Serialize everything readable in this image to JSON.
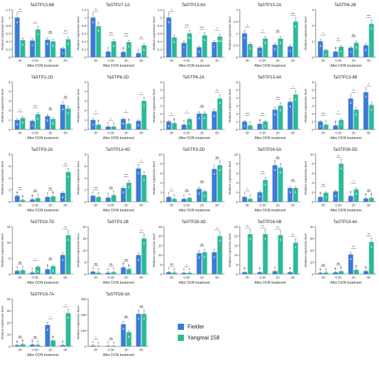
{
  "legend": {
    "items": [
      {
        "name": "Fielder",
        "color": "#3a7bd5"
      },
      {
        "name": "Yangmai 158",
        "color": "#2cb99a"
      }
    ]
  },
  "common": {
    "categories": [
      "0h",
      "0.5h",
      "2h",
      "6h"
    ],
    "xlabel": "After DON treatment",
    "ylabel": "Relative expression level",
    "colors": [
      "#3a7bd5",
      "#2cb99a"
    ]
  },
  "chart_data": [
    {
      "type": "bar",
      "title": "TaSTP13-6B",
      "ylim": [
        0,
        1.2
      ],
      "yticks": [
        0,
        0.2,
        0.4,
        0.6,
        0.8,
        1.0,
        1.2
      ],
      "series": [
        {
          "name": "Fielder",
          "values": [
            1.0,
            0.42,
            0.44,
            0.22
          ]
        },
        {
          "name": "Yangmai 158",
          "values": [
            0.43,
            0.7,
            0.4,
            0.45
          ]
        }
      ],
      "letters": [
        [
          "a",
          "c",
          "b",
          "c"
        ],
        [
          "b",
          "a",
          "b",
          "b"
        ]
      ],
      "sig": [
        "**",
        "*",
        "ns",
        "***"
      ]
    },
    {
      "type": "bar",
      "title": "TaSTP27-1A",
      "ylim": [
        0,
        1.2
      ],
      "yticks": [
        0,
        0.2,
        0.4,
        0.6,
        0.8,
        1.0,
        1.2
      ],
      "series": [
        {
          "name": "Fielder",
          "values": [
            1.0,
            0.14,
            0.13,
            0.1
          ]
        },
        {
          "name": "Yangmai 158",
          "values": [
            0.78,
            0.4,
            0.38,
            0.3
          ]
        }
      ],
      "letters": [
        [
          "a",
          "c",
          "b",
          "c"
        ],
        [
          "b",
          "a",
          "b",
          "b"
        ]
      ],
      "sig": [
        "**",
        "***",
        "***",
        "**"
      ]
    },
    {
      "type": "bar",
      "title": "TaSTP13-6A",
      "ylim": [
        0,
        1.2
      ],
      "yticks": [
        0,
        0.2,
        0.4,
        0.6,
        0.8,
        1.0,
        1.2
      ],
      "series": [
        {
          "name": "Fielder",
          "values": [
            1.0,
            0.36,
            0.25,
            0.38
          ]
        },
        {
          "name": "Yangmai 158",
          "values": [
            0.5,
            0.6,
            0.55,
            0.52
          ]
        }
      ],
      "letters": [
        [
          "a",
          "c",
          "b",
          "c"
        ],
        [
          "b",
          "bc",
          "b",
          "abc"
        ]
      ],
      "sig": [
        "*",
        "***",
        "***",
        "*"
      ]
    },
    {
      "type": "bar",
      "title": "TaSTP15-2A",
      "ylim": [
        0,
        2.0
      ],
      "yticks": [
        0,
        0.5,
        1.0,
        1.5,
        2.0
      ],
      "series": [
        {
          "name": "Fielder",
          "values": [
            1.0,
            0.4,
            0.52,
            0.45
          ]
        },
        {
          "name": "Yangmai 158",
          "values": [
            0.55,
            0.78,
            0.78,
            1.5
          ]
        }
      ],
      "letters": [
        [
          "a",
          "c",
          "b",
          "c"
        ],
        [
          "b",
          "b",
          "b",
          "a"
        ]
      ],
      "sig": [
        "*",
        "*",
        "ns",
        "***"
      ]
    },
    {
      "type": "bar",
      "title": "TaSTP6-2B",
      "ylim": [
        0,
        3
      ],
      "yticks": [
        0,
        1,
        2,
        3
      ],
      "series": [
        {
          "name": "Fielder",
          "values": [
            1.0,
            0.35,
            0.6,
            0.75
          ]
        },
        {
          "name": "Yangmai 158",
          "values": [
            0.45,
            0.65,
            0.9,
            2.1
          ]
        }
      ],
      "letters": [
        [
          "a",
          "d",
          "c",
          "b"
        ],
        [
          "c",
          "c",
          "b",
          "a"
        ]
      ],
      "sig": [
        "*",
        "**",
        "ns",
        "***"
      ]
    },
    {
      "type": "bar",
      "title": "TaSTP1-2D",
      "ylim": [
        0,
        5
      ],
      "yticks": [
        0,
        1,
        2,
        3,
        4,
        5
      ],
      "series": [
        {
          "name": "Fielder",
          "values": [
            1.0,
            0.9,
            1.4,
            2.6
          ]
        },
        {
          "name": "Yangmai 158",
          "values": [
            1.2,
            1.6,
            1.1,
            2.2
          ]
        }
      ],
      "letters": [
        [
          "b",
          "c",
          "b",
          "a"
        ],
        [
          "b",
          "b",
          "b",
          "a"
        ]
      ],
      "sig": [
        "*",
        "***",
        "ns",
        "ns"
      ]
    },
    {
      "type": "bar",
      "title": "TaSTP6-2D",
      "ylim": [
        0,
        5
      ],
      "yticks": [
        0,
        1,
        2,
        3,
        4,
        5
      ],
      "series": [
        {
          "name": "Fielder",
          "values": [
            1.0,
            0.3,
            1.1,
            0.9
          ]
        },
        {
          "name": "Yangmai 158",
          "values": [
            0.5,
            0.3,
            0.6,
            3.0
          ]
        }
      ],
      "letters": [
        [
          "a",
          "c",
          "b",
          "b"
        ],
        [
          "b",
          "c",
          "b",
          "a"
        ]
      ],
      "sig": [
        "*",
        "*",
        "*",
        "*"
      ]
    },
    {
      "type": "bar",
      "title": "TaSTP6-2A",
      "ylim": [
        0,
        6
      ],
      "yticks": [
        0,
        1,
        2,
        3,
        4,
        5,
        6
      ],
      "series": [
        {
          "name": "Fielder",
          "values": [
            1.0,
            0.6,
            2.0,
            2.3
          ]
        },
        {
          "name": "Yangmai 158",
          "values": [
            0.8,
            1.3,
            2.0,
            3.9
          ]
        }
      ],
      "letters": [
        [
          "b",
          "c",
          "a",
          "a"
        ],
        [
          "b",
          "b",
          "b",
          "a"
        ]
      ],
      "sig": [
        "*",
        "*",
        "ns",
        "**"
      ]
    },
    {
      "type": "bar",
      "title": "TaSTP13-4A",
      "ylim": [
        0,
        6
      ],
      "yticks": [
        0,
        1,
        2,
        3,
        4,
        5,
        6
      ],
      "series": [
        {
          "name": "Fielder",
          "values": [
            1.0,
            0.7,
            2.5,
            3.5
          ]
        },
        {
          "name": "Yangmai 158",
          "values": [
            0.5,
            1.0,
            3.0,
            4.4
          ]
        }
      ],
      "letters": [
        [
          "c",
          "d",
          "b",
          "a"
        ],
        [
          "c",
          "c",
          "b",
          "a"
        ]
      ],
      "sig": [
        "***",
        "**",
        "***",
        "*"
      ]
    },
    {
      "type": "bar",
      "title": "TaSTP13-4B",
      "ylim": [
        0,
        6
      ],
      "yticks": [
        0,
        1,
        2,
        3,
        4,
        5,
        6
      ],
      "series": [
        {
          "name": "Fielder",
          "values": [
            1.0,
            0.5,
            3.9,
            4.7
          ]
        },
        {
          "name": "Yangmai 158",
          "values": [
            0.6,
            1.2,
            2.5,
            3.1
          ]
        }
      ],
      "letters": [
        [
          "c",
          "d",
          "b",
          "a"
        ],
        [
          "c",
          "c",
          "b",
          "a"
        ]
      ],
      "sig": [
        "***",
        "*",
        "**",
        "*"
      ]
    },
    {
      "type": "bar",
      "title": "TaSTP3-2A",
      "ylim": [
        0,
        8
      ],
      "yticks": [
        0,
        2,
        4,
        6,
        8
      ],
      "series": [
        {
          "name": "Fielder",
          "values": [
            1.0,
            0.4,
            0.8,
            1.5
          ]
        },
        {
          "name": "Yangmai 158",
          "values": [
            0.3,
            0.6,
            0.9,
            5.0
          ]
        }
      ],
      "letters": [
        [
          "a",
          "b",
          "c",
          "d"
        ],
        [
          "b",
          "c",
          "b",
          "a"
        ]
      ],
      "sig": [
        "***",
        "ns",
        "ns",
        "**"
      ]
    },
    {
      "type": "bar",
      "title": "TaSTP13-4D",
      "ylim": [
        0,
        8
      ],
      "yticks": [
        0,
        2,
        4,
        6,
        8
      ],
      "series": [
        {
          "name": "Fielder",
          "values": [
            1.0,
            0.7,
            2.3,
            5.6
          ]
        },
        {
          "name": "Yangmai 158",
          "values": [
            0.8,
            1.1,
            3.2,
            4.5
          ]
        }
      ],
      "letters": [
        [
          "c",
          "c",
          "b",
          "a"
        ],
        [
          "c",
          "c",
          "b",
          "a"
        ]
      ],
      "sig": [
        "***",
        "ns",
        "***",
        "*"
      ]
    },
    {
      "type": "bar",
      "title": "TaSTP3-2D",
      "ylim": [
        0,
        10
      ],
      "yticks": [
        0,
        2,
        4,
        6,
        8,
        10
      ],
      "series": [
        {
          "name": "Fielder",
          "values": [
            1.0,
            0.6,
            2.7,
            6.9
          ]
        },
        {
          "name": "Yangmai 158",
          "values": [
            0.6,
            0.8,
            2.2,
            7.7
          ]
        }
      ],
      "letters": [
        [
          "c",
          "c",
          "b",
          "a"
        ],
        [
          "c",
          "c",
          "b",
          "a"
        ]
      ],
      "sig": [
        "*",
        "ns",
        "ns",
        "ns"
      ]
    },
    {
      "type": "bar",
      "title": "TaSTP26-5A",
      "ylim": [
        0,
        10
      ],
      "yticks": [
        0,
        2,
        4,
        6,
        8,
        10
      ],
      "series": [
        {
          "name": "Fielder",
          "values": [
            1.0,
            2.0,
            7.7,
            2.9
          ]
        },
        {
          "name": "Yangmai 158",
          "values": [
            0.6,
            4.6,
            7.2,
            2.9
          ]
        }
      ],
      "letters": [
        [
          "c",
          "b",
          "a",
          "b"
        ],
        [
          "c",
          "b",
          "a",
          "b"
        ]
      ],
      "sig": [
        "*",
        "***",
        "ns",
        "ns"
      ]
    },
    {
      "type": "bar",
      "title": "TaSTP26-5D",
      "ylim": [
        0,
        10
      ],
      "yticks": [
        0,
        2,
        4,
        6,
        8,
        10
      ],
      "series": [
        {
          "name": "Fielder",
          "values": [
            1.0,
            2.2,
            1.2,
            0.7
          ]
        },
        {
          "name": "Yangmai 158",
          "values": [
            1.9,
            8.0,
            2.6,
            0.8
          ]
        }
      ],
      "letters": [
        [
          "b",
          "a",
          "b",
          "b"
        ],
        [
          "c",
          "a",
          "b",
          "d"
        ]
      ],
      "sig": [
        "***",
        "**",
        "*",
        "ns"
      ]
    },
    {
      "type": "bar",
      "title": "TaSTP19-7D",
      "ylim": [
        0,
        15
      ],
      "yticks": [
        0,
        5,
        10,
        15
      ],
      "series": [
        {
          "name": "Fielder",
          "values": [
            1.0,
            0.5,
            1.5,
            6.0
          ]
        },
        {
          "name": "Yangmai 158",
          "values": [
            1.2,
            2.3,
            2.5,
            12.3
          ]
        }
      ],
      "letters": [
        [
          "c",
          "c",
          "b",
          "a"
        ],
        [
          "c",
          "b",
          "b",
          "a"
        ]
      ],
      "sig": [
        "ns",
        "*",
        "ns",
        "**"
      ]
    },
    {
      "type": "bar",
      "title": "TaSTP3-2B",
      "ylim": [
        0,
        20
      ],
      "yticks": [
        0,
        5,
        10,
        15,
        20
      ],
      "series": [
        {
          "name": "Fielder",
          "values": [
            1.0,
            0.6,
            2.8,
            8.0
          ]
        },
        {
          "name": "Yangmai 158",
          "values": [
            0.6,
            0.8,
            2.1,
            15.0
          ]
        }
      ],
      "letters": [
        [
          "c",
          "c",
          "b",
          "a"
        ],
        [
          "c",
          "c",
          "b",
          "a"
        ]
      ],
      "sig": [
        "ns",
        "ns",
        "ns",
        "**"
      ]
    },
    {
      "type": "bar",
      "title": "TaSTP28-3D",
      "ylim": [
        0,
        25
      ],
      "yticks": [
        0,
        5,
        10,
        15,
        20,
        25
      ],
      "series": [
        {
          "name": "Fielder",
          "values": [
            1.0,
            0.6,
            11.0,
            11.5
          ]
        },
        {
          "name": "Yangmai 158",
          "values": [
            0.8,
            0.7,
            11.5,
            20.0
          ]
        }
      ],
      "letters": [
        [
          "c",
          "c",
          "b",
          "a"
        ],
        [
          "c",
          "c",
          "b",
          "a"
        ]
      ],
      "sig": [
        "ns",
        "*",
        "ns",
        "*"
      ]
    },
    {
      "type": "bar",
      "title": "TaSTP26-5B",
      "ylim": [
        0,
        25
      ],
      "yticks": [
        0,
        5,
        10,
        15,
        20,
        25
      ],
      "series": [
        {
          "name": "Fielder",
          "values": [
            1.0,
            1.0,
            1.5,
            1.0
          ]
        },
        {
          "name": "Yangmai 158",
          "values": [
            21.0,
            21.0,
            20.5,
            16.5
          ]
        }
      ],
      "letters": [
        [
          "b",
          "b",
          "c",
          "b"
        ],
        [
          "a",
          "a",
          "a",
          "a"
        ]
      ],
      "sig": [
        "**",
        "**",
        "**",
        "**"
      ]
    },
    {
      "type": "bar",
      "title": "TaSTP19-4A",
      "ylim": [
        0,
        40
      ],
      "yticks": [
        0,
        10,
        20,
        30,
        40
      ],
      "series": [
        {
          "name": "Fielder",
          "values": [
            1.0,
            1.5,
            16.5,
            2.5
          ]
        },
        {
          "name": "Yangmai 158",
          "values": [
            1.3,
            2.3,
            3.5,
            27.0
          ]
        }
      ],
      "letters": [
        [
          "b",
          "b",
          "a",
          "b"
        ],
        [
          "c",
          "b",
          "b",
          "a"
        ]
      ],
      "sig": [
        "ns",
        "ns",
        "**",
        "**"
      ]
    },
    {
      "type": "bar",
      "title": "TaSTP19-7A",
      "ylim": [
        0,
        40
      ],
      "yticks": [
        0,
        10,
        20,
        30,
        40
      ],
      "series": [
        {
          "name": "Fielder",
          "values": [
            1.0,
            1.5,
            18.0,
            1.0
          ]
        },
        {
          "name": "Yangmai 158",
          "values": [
            1.8,
            1.3,
            5.0,
            28.0
          ]
        }
      ],
      "letters": [
        [
          "b",
          "b",
          "a",
          "b"
        ],
        [
          "b",
          "c",
          "b",
          "a"
        ]
      ],
      "sig": [
        "ns",
        "ns",
        "*",
        "*"
      ]
    },
    {
      "type": "bar",
      "title": "TaSTP28-3A",
      "ylim": [
        0,
        300
      ],
      "yticks": [
        0,
        100,
        200,
        300
      ],
      "series": [
        {
          "name": "Fielder",
          "values": [
            5,
            3,
            140,
            205
          ]
        },
        {
          "name": "Yangmai 158",
          "values": [
            2,
            3,
            90,
            205
          ]
        }
      ],
      "letters": [
        [
          "c",
          "c",
          "b",
          "a"
        ],
        [
          "c",
          "c",
          "b",
          "a"
        ]
      ],
      "sig": [
        "*",
        "ns",
        "ns",
        "ns"
      ]
    }
  ]
}
